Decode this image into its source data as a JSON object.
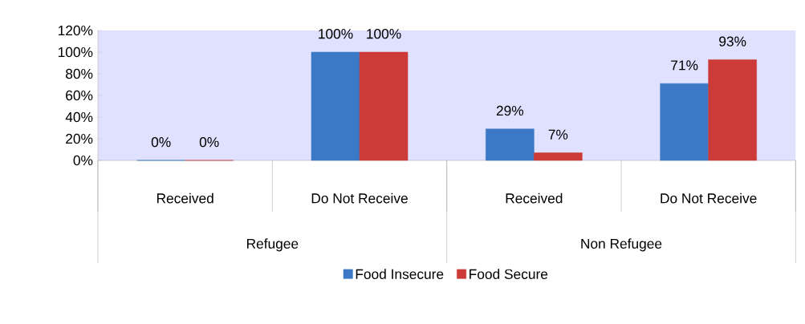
{
  "chart_data": {
    "type": "bar",
    "categories": [
      "Received",
      "Do Not Receive",
      "Received",
      "Do Not Receive"
    ],
    "series": [
      {
        "name": "Food Insecure",
        "color": "#3b78c6",
        "values": [
          0,
          100,
          29,
          71
        ],
        "value_labels": [
          "0%",
          "100%",
          "29%",
          "71%"
        ]
      },
      {
        "name": "Food Secure",
        "color": "#cc3b38",
        "values": [
          0,
          100,
          7,
          93
        ],
        "value_labels": [
          "0%",
          "100%",
          "7%",
          "93%"
        ]
      }
    ],
    "ylim": [
      0,
      120
    ],
    "yticks": [
      {
        "value": 0,
        "label": "0%"
      },
      {
        "value": 20,
        "label": "20%"
      },
      {
        "value": 40,
        "label": "40%"
      },
      {
        "value": 60,
        "label": "60%"
      },
      {
        "value": 80,
        "label": "80%"
      },
      {
        "value": 100,
        "label": "100%"
      },
      {
        "value": 120,
        "label": "120%"
      }
    ],
    "annotations": [
      "Refugee",
      "Non Refugee"
    ],
    "grid": false,
    "legend": "bottom"
  }
}
